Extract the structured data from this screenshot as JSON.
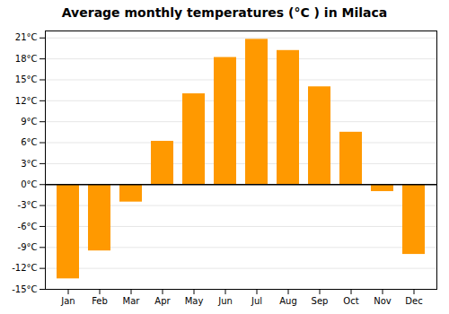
{
  "chart_data": {
    "type": "bar",
    "title": "Average monthly temperatures (°C ) in Milaca",
    "categories": [
      "Jan",
      "Feb",
      "Mar",
      "Apr",
      "May",
      "Jun",
      "Jul",
      "Aug",
      "Sep",
      "Oct",
      "Nov",
      "Dec"
    ],
    "values": [
      -13.5,
      -9.5,
      -2.5,
      6.2,
      13.0,
      18.2,
      20.8,
      19.2,
      14.0,
      7.5,
      -1.0,
      -10.0
    ],
    "color": "#FF9900",
    "ylim": [
      -15,
      22
    ],
    "yticks": [
      {
        "value": -15,
        "label": "-15°C"
      },
      {
        "value": -12,
        "label": "-12°C"
      },
      {
        "value": -9,
        "label": "-9°C"
      },
      {
        "value": -6,
        "label": "-6°C"
      },
      {
        "value": -3,
        "label": "-3°C"
      },
      {
        "value": 0,
        "label": "0°C"
      },
      {
        "value": 3,
        "label": "3°C"
      },
      {
        "value": 6,
        "label": "6°C"
      },
      {
        "value": 9,
        "label": "9°C"
      },
      {
        "value": 12,
        "label": "12°C"
      },
      {
        "value": 15,
        "label": "15°C"
      },
      {
        "value": 18,
        "label": "18°C"
      },
      {
        "value": 21,
        "label": "21°C"
      }
    ],
    "grid": true
  }
}
